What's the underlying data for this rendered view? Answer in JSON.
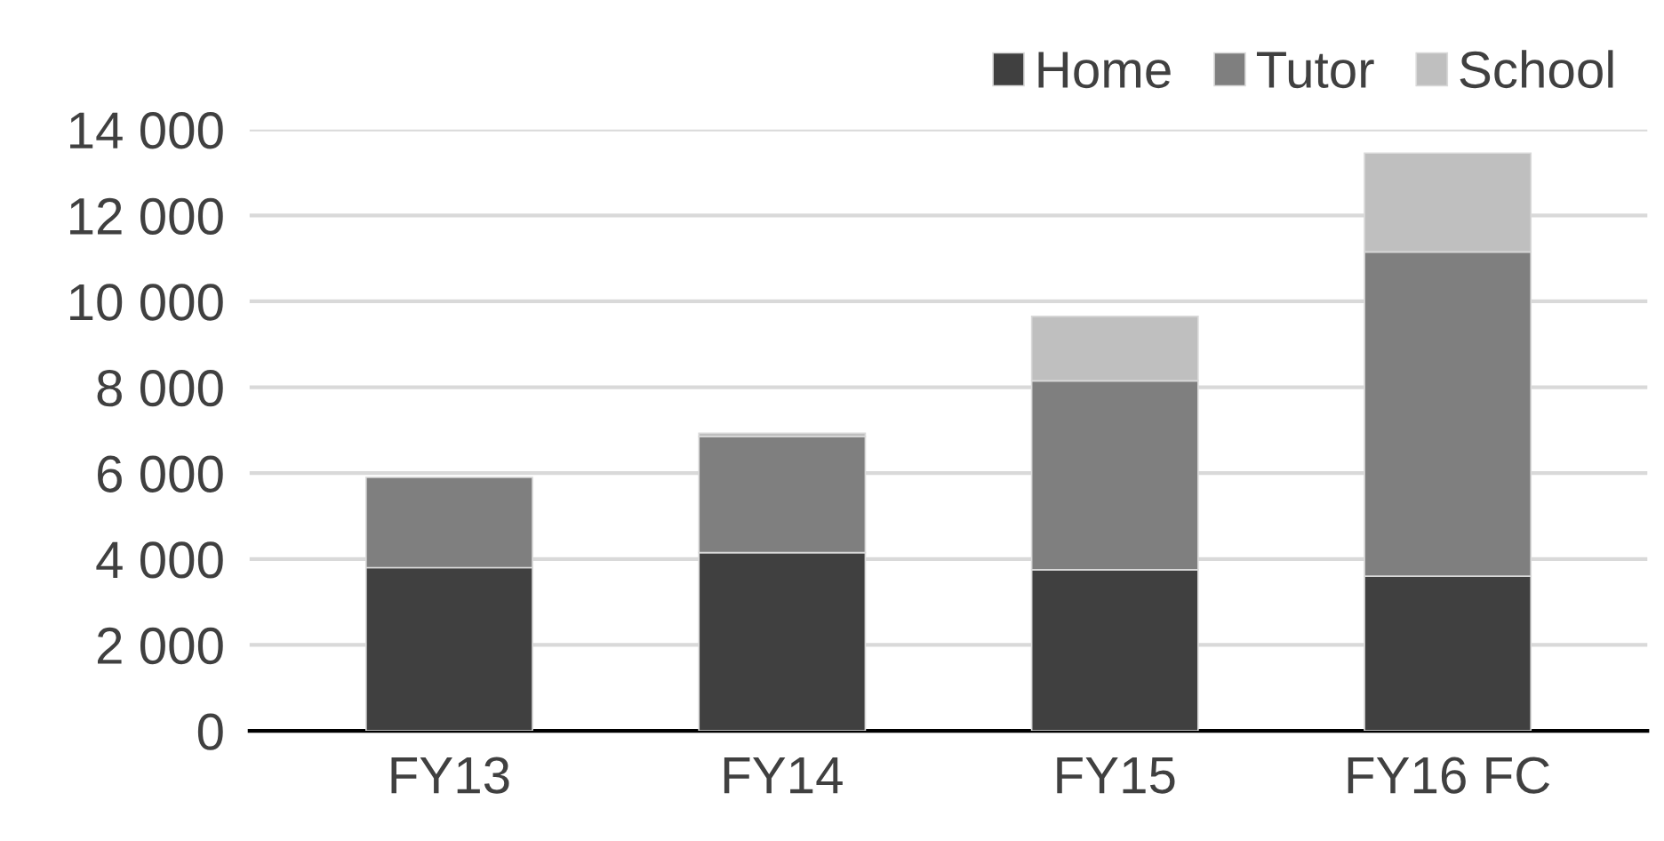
{
  "chart_data": {
    "type": "bar",
    "stacked": true,
    "categories": [
      "FY13",
      "FY14",
      "FY15",
      "FY16 FC"
    ],
    "series": [
      {
        "name": "Home",
        "color": "#404040",
        "values": [
          3800,
          4150,
          3750,
          3600
        ]
      },
      {
        "name": "Tutor",
        "color": "#7f7f7f",
        "values": [
          2100,
          2700,
          4400,
          7550
        ]
      },
      {
        "name": "School",
        "color": "#bfbfbf",
        "values": [
          null,
          80,
          1500,
          2300
        ]
      }
    ],
    "ylim": [
      0,
      14000
    ],
    "yticks": [
      {
        "value": 0,
        "label": "0"
      },
      {
        "value": 2000,
        "label": "2 000"
      },
      {
        "value": 4000,
        "label": "4 000"
      },
      {
        "value": 6000,
        "label": "6 000"
      },
      {
        "value": 8000,
        "label": "8 000"
      },
      {
        "value": 10000,
        "label": "10 000"
      },
      {
        "value": 12000,
        "label": "12 000"
      },
      {
        "value": 14000,
        "label": "14 000"
      }
    ],
    "grid": "y",
    "legend": "top right"
  }
}
